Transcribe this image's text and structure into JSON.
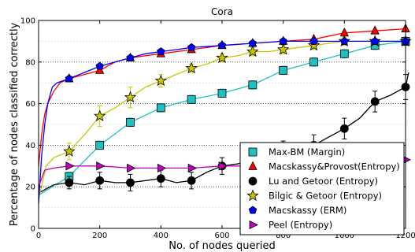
{
  "chart_data": {
    "type": "line",
    "title": "Cora",
    "xlabel": "No. of nodes queried",
    "ylabel": "Percentage of nodes classified correctly",
    "xlim": [
      0,
      1200
    ],
    "ylim": [
      0,
      100
    ],
    "xticks": [
      0,
      200,
      400,
      600,
      800,
      1000,
      1200
    ],
    "yticks": [
      0,
      20,
      40,
      60,
      80,
      100
    ],
    "grid": "horizontal-dotted",
    "legend_position": "lower-right",
    "series": [
      {
        "name": "Max-BM (Margin)",
        "color": "#20c0c0",
        "marker": "square",
        "points": [
          [
            0,
            16
          ],
          [
            100,
            25
          ],
          [
            200,
            40
          ],
          [
            300,
            51
          ],
          [
            400,
            58
          ],
          [
            500,
            62
          ],
          [
            600,
            65
          ],
          [
            700,
            69
          ],
          [
            800,
            76
          ],
          [
            900,
            80
          ],
          [
            1000,
            84
          ],
          [
            1100,
            88
          ],
          [
            1200,
            90
          ]
        ],
        "marker_points": [
          [
            100,
            25
          ],
          [
            200,
            40
          ],
          [
            300,
            51
          ],
          [
            400,
            58
          ],
          [
            500,
            62
          ],
          [
            600,
            65
          ],
          [
            700,
            69
          ],
          [
            800,
            76
          ],
          [
            900,
            80
          ],
          [
            1000,
            84
          ],
          [
            1100,
            88
          ],
          [
            1200,
            90
          ]
        ],
        "errors": [
          2,
          2,
          2,
          2,
          2,
          2,
          2,
          2,
          2,
          2,
          2,
          2
        ]
      },
      {
        "name": "Macskassy&Provost(Entropy)",
        "color": "#ff0000",
        "marker": "triangle",
        "points": [
          [
            0,
            30
          ],
          [
            10,
            45
          ],
          [
            20,
            55
          ],
          [
            30,
            60
          ],
          [
            50,
            66
          ],
          [
            70,
            70
          ],
          [
            100,
            72
          ],
          [
            150,
            74
          ],
          [
            200,
            76
          ],
          [
            250,
            80
          ],
          [
            300,
            82
          ],
          [
            400,
            84
          ],
          [
            500,
            86
          ],
          [
            600,
            88
          ],
          [
            700,
            89
          ],
          [
            800,
            90
          ],
          [
            900,
            91
          ],
          [
            1000,
            94
          ],
          [
            1100,
            95
          ],
          [
            1200,
            96
          ]
        ],
        "marker_points": [
          [
            100,
            72
          ],
          [
            200,
            76
          ],
          [
            300,
            82
          ],
          [
            400,
            84
          ],
          [
            500,
            86
          ],
          [
            600,
            88
          ],
          [
            700,
            89
          ],
          [
            800,
            90
          ],
          [
            900,
            91
          ],
          [
            1000,
            94
          ],
          [
            1100,
            95
          ],
          [
            1200,
            96
          ]
        ],
        "errors": [
          0,
          0,
          0,
          0,
          0,
          0,
          0,
          0,
          0,
          0,
          0,
          0
        ]
      },
      {
        "name": "Lu and Getoor (Entropy)",
        "color": "#000000",
        "marker": "circle",
        "points": [
          [
            0,
            17
          ],
          [
            50,
            21
          ],
          [
            100,
            22
          ],
          [
            150,
            21
          ],
          [
            200,
            23
          ],
          [
            250,
            22
          ],
          [
            300,
            22
          ],
          [
            350,
            23
          ],
          [
            400,
            24
          ],
          [
            450,
            22
          ],
          [
            500,
            23
          ],
          [
            550,
            27
          ],
          [
            600,
            30
          ],
          [
            650,
            31
          ],
          [
            700,
            33
          ],
          [
            750,
            35
          ],
          [
            800,
            37
          ],
          [
            850,
            38
          ],
          [
            900,
            40
          ],
          [
            950,
            44
          ],
          [
            1000,
            48
          ],
          [
            1050,
            53
          ],
          [
            1100,
            61
          ],
          [
            1150,
            64
          ],
          [
            1200,
            68
          ],
          [
            1210,
            75
          ]
        ],
        "marker_points": [
          [
            100,
            22
          ],
          [
            200,
            23
          ],
          [
            300,
            22
          ],
          [
            400,
            24
          ],
          [
            500,
            23
          ],
          [
            600,
            30
          ],
          [
            700,
            33
          ],
          [
            800,
            37
          ],
          [
            900,
            40
          ],
          [
            1000,
            48
          ],
          [
            1100,
            61
          ],
          [
            1200,
            68
          ]
        ],
        "errors": [
          3,
          4,
          4,
          4,
          4,
          4,
          4,
          5,
          5,
          5,
          5,
          6
        ]
      },
      {
        "name": "Bilgic & Getoor (Entropy)",
        "color": "#c8c800",
        "marker": "star",
        "points": [
          [
            0,
            14
          ],
          [
            25,
            30
          ],
          [
            50,
            34
          ],
          [
            100,
            37
          ],
          [
            150,
            45
          ],
          [
            200,
            54
          ],
          [
            250,
            58
          ],
          [
            300,
            63
          ],
          [
            350,
            68
          ],
          [
            400,
            71
          ],
          [
            450,
            74
          ],
          [
            500,
            77
          ],
          [
            550,
            79
          ],
          [
            600,
            82
          ],
          [
            650,
            83
          ],
          [
            700,
            85
          ],
          [
            750,
            85
          ],
          [
            800,
            86
          ],
          [
            850,
            87
          ],
          [
            900,
            88
          ],
          [
            950,
            89
          ],
          [
            1000,
            90
          ],
          [
            1100,
            90
          ],
          [
            1200,
            90
          ]
        ],
        "marker_points": [
          [
            100,
            37
          ],
          [
            200,
            54
          ],
          [
            300,
            63
          ],
          [
            400,
            71
          ],
          [
            500,
            77
          ],
          [
            600,
            82
          ],
          [
            700,
            85
          ],
          [
            800,
            86
          ],
          [
            900,
            88
          ],
          [
            1000,
            90
          ],
          [
            1100,
            90
          ],
          [
            1200,
            90
          ]
        ],
        "errors": [
          4,
          5,
          5,
          3,
          2,
          2,
          2,
          2,
          2,
          2,
          1,
          1
        ]
      },
      {
        "name": "Macskassy (ERM)",
        "color": "#0000ff",
        "marker": "pentagon",
        "points": [
          [
            0,
            12
          ],
          [
            10,
            35
          ],
          [
            20,
            50
          ],
          [
            30,
            60
          ],
          [
            45,
            68
          ],
          [
            60,
            70
          ],
          [
            100,
            72
          ],
          [
            150,
            75
          ],
          [
            200,
            78
          ],
          [
            250,
            80
          ],
          [
            300,
            82
          ],
          [
            350,
            84
          ],
          [
            400,
            85
          ],
          [
            450,
            86
          ],
          [
            500,
            87
          ],
          [
            600,
            88
          ],
          [
            700,
            89
          ],
          [
            800,
            90
          ],
          [
            900,
            90
          ],
          [
            1000,
            90
          ],
          [
            1100,
            90
          ],
          [
            1200,
            90
          ]
        ],
        "marker_points": [
          [
            100,
            72
          ],
          [
            200,
            78
          ],
          [
            300,
            82
          ],
          [
            400,
            85
          ],
          [
            500,
            87
          ],
          [
            600,
            88
          ],
          [
            700,
            89
          ],
          [
            800,
            90
          ],
          [
            900,
            90
          ],
          [
            1000,
            90
          ],
          [
            1100,
            90
          ],
          [
            1200,
            90
          ]
        ],
        "errors": [
          0,
          0,
          0,
          0,
          0,
          0,
          0,
          0,
          0,
          0,
          0,
          0
        ]
      },
      {
        "name": "Peel (Entropy)",
        "color": "#c000c0",
        "marker": "triangle-right",
        "points": [
          [
            0,
            20
          ],
          [
            20,
            28
          ],
          [
            50,
            29
          ],
          [
            100,
            30
          ],
          [
            200,
            30
          ],
          [
            300,
            29
          ],
          [
            400,
            29
          ],
          [
            500,
            29
          ],
          [
            600,
            30
          ],
          [
            700,
            30
          ],
          [
            800,
            30
          ],
          [
            900,
            30
          ],
          [
            1000,
            30
          ],
          [
            1100,
            31
          ],
          [
            1200,
            33
          ]
        ],
        "marker_points": [
          [
            100,
            30
          ],
          [
            200,
            30
          ],
          [
            300,
            29
          ],
          [
            400,
            29
          ],
          [
            500,
            29
          ],
          [
            600,
            30
          ],
          [
            1200,
            33
          ]
        ],
        "errors": [
          0,
          0,
          0,
          0,
          0,
          0,
          0
        ]
      }
    ]
  }
}
